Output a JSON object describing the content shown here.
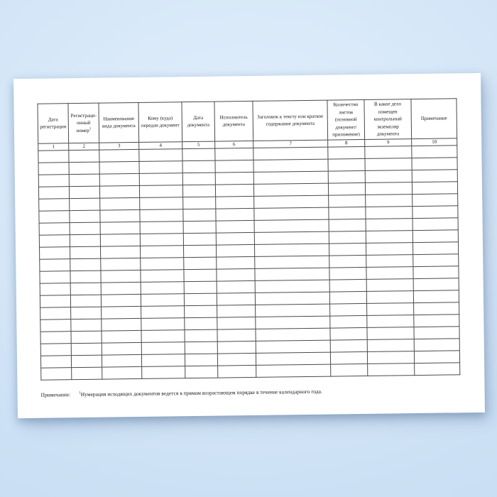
{
  "scene": {
    "background_edge_color": "#c5dcf2",
    "background_center_color": "#e3effc",
    "page_color": "#ffffff",
    "grid_line_color": "#4a4a4a"
  },
  "table": {
    "columns": [
      {
        "number": "1",
        "header": "Дата регистрации"
      },
      {
        "number": "2",
        "header": "Регистраци-онный номер",
        "sup": "1"
      },
      {
        "number": "3",
        "header": "Наименование вида документа"
      },
      {
        "number": "4",
        "header": "Кому (куда) передан документ"
      },
      {
        "number": "5",
        "header": "Дата документа"
      },
      {
        "number": "6",
        "header": "Исполнитель документа"
      },
      {
        "number": "7",
        "header": "Заголовок к тексту или краткое содержание документа"
      },
      {
        "number": "8",
        "header": "Количество листов (основной документ/ приложение)"
      },
      {
        "number": "9",
        "header": "В какое дело помещен контрольный экземпляр документа"
      },
      {
        "number": "10",
        "header": "Примечание"
      }
    ],
    "empty_row_count": 19
  },
  "footnote": {
    "label": "Примечание:",
    "sup": "1",
    "text": "Нумерация исходящих документов ведется в прямом возрастающем порядке в течение календарного года."
  }
}
